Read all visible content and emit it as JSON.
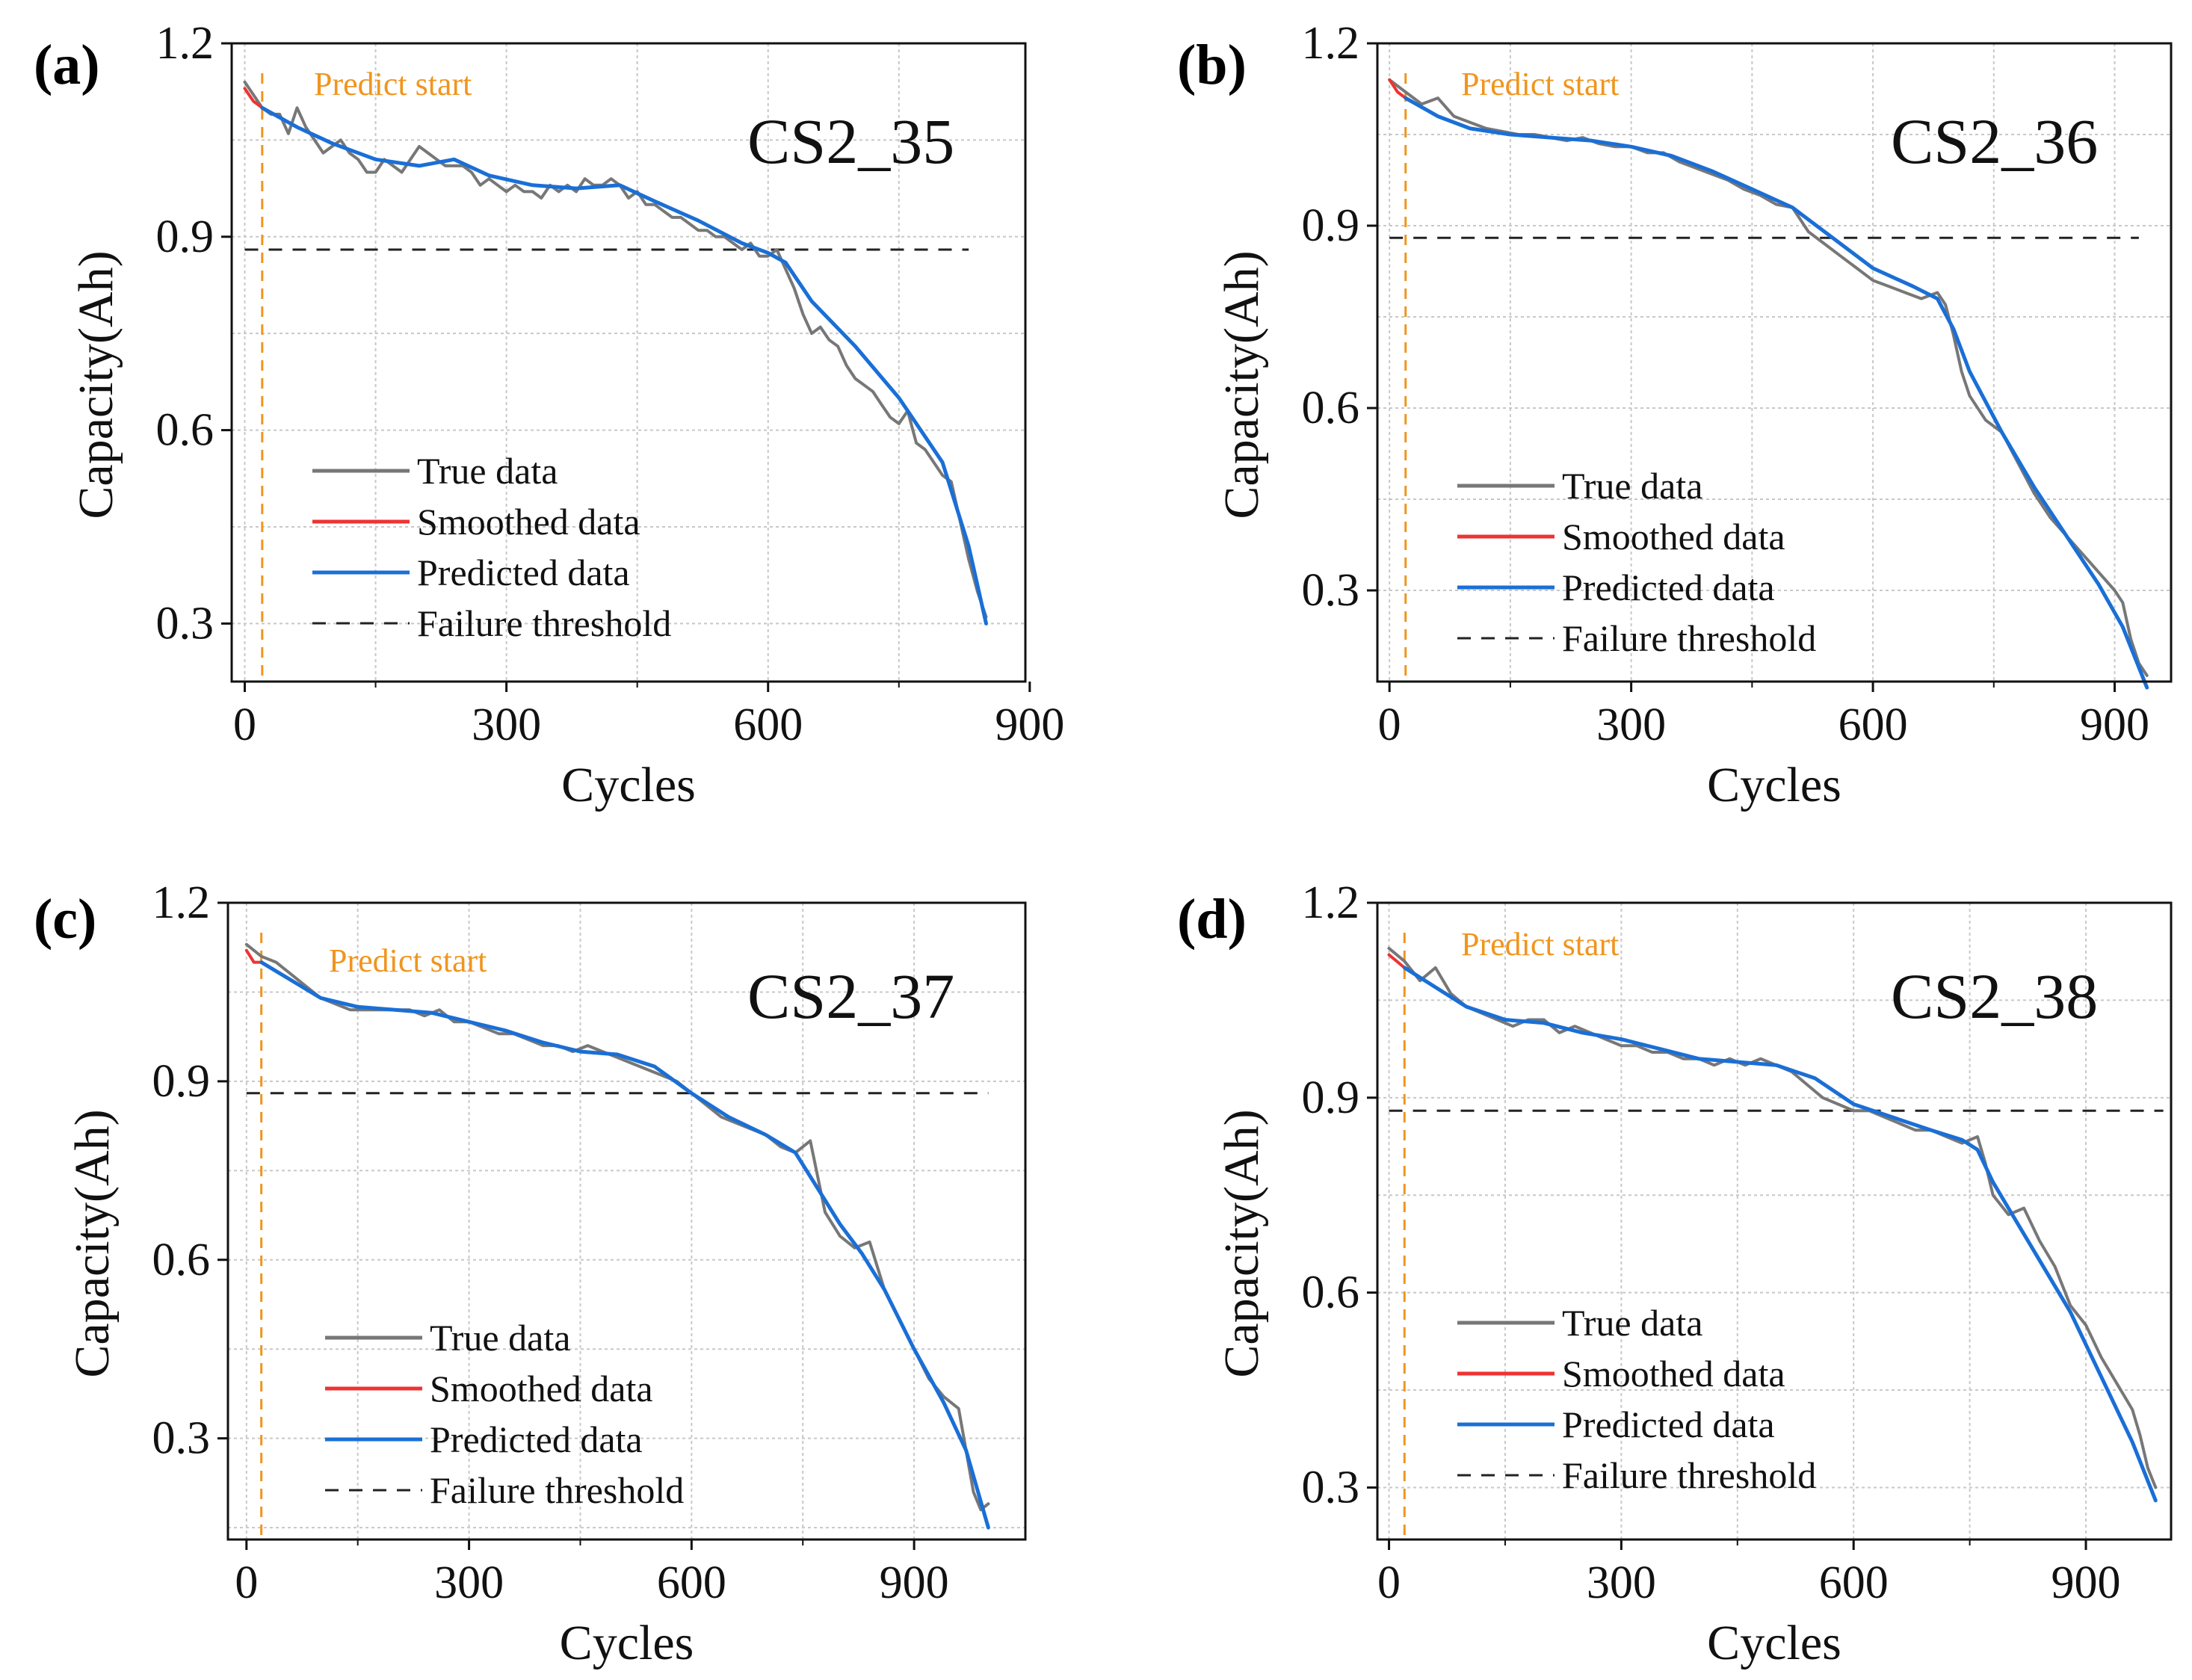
{
  "colors": {
    "true": "#777777",
    "smoothed": "#ee3333",
    "predicted": "#1a6fd6",
    "threshold": "#222222",
    "predict_start": "#f0951e",
    "grid": "#c8c8c8"
  },
  "chart_data": [
    {
      "type": "line",
      "panel": "(a)",
      "title": "CS2_35",
      "xlabel": "Cycles",
      "ylabel": "Capacity(Ah)",
      "xlim": [
        -15,
        895
      ],
      "ylim": [
        0.21,
        1.2
      ],
      "xticks": [
        0,
        300,
        600,
        900
      ],
      "xtick_labels": [
        "0",
        "300",
        "600",
        "900"
      ],
      "yticks": [
        0.3,
        0.6,
        0.9,
        1.2
      ],
      "ytick_labels": [
        "0.3",
        "0.6",
        "0.9",
        "1.2"
      ],
      "grid": true,
      "predict_start": {
        "x": 20,
        "label": "Predict start"
      },
      "failure_threshold": {
        "y": 0.88,
        "x_range": [
          0,
          830
        ]
      },
      "legend": [
        "True data",
        "Smoothed data",
        "Predicted data",
        "Failure threshold"
      ],
      "legend_placement": "lower-left",
      "series": [
        {
          "name": "True data",
          "role": "true",
          "x": [
            0,
            10,
            20,
            30,
            40,
            50,
            60,
            70,
            80,
            90,
            100,
            110,
            120,
            130,
            140,
            150,
            160,
            170,
            180,
            190,
            200,
            210,
            220,
            230,
            240,
            250,
            260,
            270,
            280,
            290,
            300,
            310,
            320,
            330,
            340,
            350,
            360,
            370,
            380,
            390,
            400,
            410,
            420,
            430,
            440,
            450,
            460,
            470,
            480,
            490,
            500,
            510,
            520,
            530,
            540,
            550,
            560,
            570,
            580,
            590,
            600,
            610,
            620,
            630,
            640,
            650,
            660,
            670,
            680,
            690,
            700,
            710,
            720,
            730,
            740,
            750,
            760,
            770,
            780,
            790,
            800,
            810,
            820,
            830,
            840,
            850
          ],
          "y": [
            1.14,
            1.12,
            1.1,
            1.09,
            1.09,
            1.06,
            1.1,
            1.07,
            1.05,
            1.03,
            1.04,
            1.05,
            1.03,
            1.02,
            1.0,
            1.0,
            1.02,
            1.01,
            1.0,
            1.02,
            1.04,
            1.03,
            1.02,
            1.01,
            1.01,
            1.01,
            1.0,
            0.98,
            0.99,
            0.98,
            0.97,
            0.98,
            0.97,
            0.97,
            0.96,
            0.98,
            0.97,
            0.98,
            0.97,
            0.99,
            0.98,
            0.98,
            0.99,
            0.98,
            0.96,
            0.97,
            0.95,
            0.95,
            0.94,
            0.93,
            0.93,
            0.92,
            0.91,
            0.91,
            0.9,
            0.9,
            0.89,
            0.88,
            0.89,
            0.87,
            0.87,
            0.88,
            0.85,
            0.82,
            0.78,
            0.75,
            0.76,
            0.74,
            0.73,
            0.7,
            0.68,
            0.67,
            0.66,
            0.64,
            0.62,
            0.61,
            0.63,
            0.58,
            0.57,
            0.55,
            0.53,
            0.52,
            0.46,
            0.4,
            0.35,
            0.31
          ]
        },
        {
          "name": "Smoothed data",
          "role": "smoothed",
          "x": [
            0,
            5,
            10,
            15,
            20
          ],
          "y": [
            1.13,
            1.12,
            1.11,
            1.105,
            1.1
          ]
        },
        {
          "name": "Predicted data",
          "role": "predicted",
          "x": [
            20,
            60,
            100,
            150,
            200,
            240,
            280,
            330,
            380,
            430,
            470,
            520,
            570,
            600,
            620,
            650,
            700,
            750,
            800,
            830,
            850
          ],
          "y": [
            1.1,
            1.07,
            1.045,
            1.02,
            1.01,
            1.02,
            0.995,
            0.98,
            0.975,
            0.98,
            0.955,
            0.925,
            0.89,
            0.875,
            0.86,
            0.8,
            0.73,
            0.65,
            0.55,
            0.42,
            0.3
          ]
        }
      ]
    },
    {
      "type": "line",
      "panel": "(b)",
      "title": "CS2_36",
      "xlabel": "Cycles",
      "ylabel": "Capacity(Ah)",
      "xlim": [
        -15,
        970
      ],
      "ylim": [
        0.15,
        1.2
      ],
      "xticks": [
        0,
        300,
        600,
        900
      ],
      "xtick_labels": [
        "0",
        "300",
        "600",
        "900"
      ],
      "yticks": [
        0.3,
        0.6,
        0.9,
        1.2
      ],
      "ytick_labels": [
        "0.3",
        "0.6",
        "0.9",
        "1.2"
      ],
      "grid": true,
      "predict_start": {
        "x": 20,
        "label": "Predict start"
      },
      "failure_threshold": {
        "y": 0.88,
        "x_range": [
          0,
          930
        ]
      },
      "legend": [
        "True data",
        "Smoothed data",
        "Predicted data",
        "Failure threshold"
      ],
      "legend_placement": "lower-left",
      "series": [
        {
          "name": "True data",
          "role": "true",
          "x": [
            0,
            20,
            40,
            60,
            80,
            100,
            120,
            140,
            160,
            180,
            200,
            220,
            240,
            260,
            280,
            300,
            320,
            340,
            360,
            380,
            400,
            420,
            440,
            460,
            480,
            500,
            520,
            540,
            560,
            580,
            600,
            620,
            640,
            660,
            680,
            690,
            700,
            710,
            720,
            740,
            760,
            780,
            800,
            820,
            840,
            860,
            880,
            900,
            910,
            920,
            930,
            940
          ],
          "y": [
            1.14,
            1.12,
            1.1,
            1.11,
            1.08,
            1.07,
            1.06,
            1.055,
            1.05,
            1.05,
            1.045,
            1.04,
            1.045,
            1.035,
            1.03,
            1.03,
            1.02,
            1.02,
            1.005,
            0.995,
            0.985,
            0.975,
            0.96,
            0.95,
            0.935,
            0.93,
            0.89,
            0.87,
            0.85,
            0.83,
            0.81,
            0.8,
            0.79,
            0.78,
            0.79,
            0.77,
            0.72,
            0.66,
            0.62,
            0.58,
            0.56,
            0.51,
            0.46,
            0.42,
            0.39,
            0.36,
            0.33,
            0.3,
            0.28,
            0.22,
            0.18,
            0.16
          ]
        },
        {
          "name": "Smoothed data",
          "role": "smoothed",
          "x": [
            0,
            5,
            10,
            15,
            20
          ],
          "y": [
            1.14,
            1.13,
            1.12,
            1.115,
            1.11
          ]
        },
        {
          "name": "Predicted data",
          "role": "predicted",
          "x": [
            20,
            60,
            100,
            150,
            200,
            250,
            300,
            350,
            400,
            450,
            500,
            550,
            600,
            650,
            680,
            700,
            720,
            760,
            800,
            840,
            880,
            910,
            940
          ],
          "y": [
            1.11,
            1.08,
            1.06,
            1.05,
            1.045,
            1.04,
            1.03,
            1.015,
            0.99,
            0.96,
            0.93,
            0.88,
            0.83,
            0.8,
            0.78,
            0.73,
            0.66,
            0.56,
            0.47,
            0.39,
            0.31,
            0.24,
            0.14
          ]
        }
      ]
    },
    {
      "type": "line",
      "panel": "(c)",
      "title": "CS2_37",
      "xlabel": "Cycles",
      "ylabel": "Capacity(Ah)",
      "xlim": [
        -25,
        1050
      ],
      "ylim": [
        0.13,
        1.2
      ],
      "xticks": [
        0,
        300,
        600,
        900
      ],
      "xtick_labels": [
        "0",
        "300",
        "600",
        "900"
      ],
      "yticks": [
        0.3,
        0.6,
        0.9,
        1.2
      ],
      "ytick_labels": [
        "0.3",
        "0.6",
        "0.9",
        "1.2"
      ],
      "grid": true,
      "predict_start": {
        "x": 20,
        "label": "Predict start"
      },
      "failure_threshold": {
        "y": 0.88,
        "x_range": [
          0,
          1000
        ]
      },
      "legend": [
        "True data",
        "Smoothed data",
        "Predicted data",
        "Failure threshold"
      ],
      "legend_placement": "lower-left",
      "series": [
        {
          "name": "True data",
          "role": "true",
          "x": [
            0,
            20,
            40,
            60,
            80,
            100,
            120,
            140,
            160,
            180,
            200,
            220,
            240,
            260,
            280,
            300,
            320,
            340,
            360,
            380,
            400,
            420,
            440,
            460,
            480,
            500,
            520,
            540,
            560,
            580,
            600,
            620,
            640,
            660,
            680,
            700,
            720,
            740,
            760,
            770,
            780,
            800,
            820,
            840,
            860,
            880,
            900,
            920,
            940,
            960,
            970,
            980,
            990,
            1000
          ],
          "y": [
            1.13,
            1.11,
            1.1,
            1.08,
            1.06,
            1.04,
            1.03,
            1.02,
            1.02,
            1.02,
            1.02,
            1.02,
            1.01,
            1.02,
            1.0,
            1.0,
            0.99,
            0.98,
            0.98,
            0.97,
            0.96,
            0.96,
            0.95,
            0.96,
            0.95,
            0.94,
            0.93,
            0.92,
            0.91,
            0.9,
            0.88,
            0.86,
            0.84,
            0.83,
            0.82,
            0.81,
            0.79,
            0.78,
            0.8,
            0.74,
            0.68,
            0.64,
            0.62,
            0.63,
            0.55,
            0.5,
            0.45,
            0.4,
            0.37,
            0.35,
            0.28,
            0.21,
            0.18,
            0.19
          ]
        },
        {
          "name": "Smoothed data",
          "role": "smoothed",
          "x": [
            0,
            5,
            10,
            15,
            20
          ],
          "y": [
            1.12,
            1.11,
            1.1,
            1.1,
            1.1
          ]
        },
        {
          "name": "Predicted data",
          "role": "predicted",
          "x": [
            20,
            60,
            100,
            150,
            200,
            250,
            300,
            350,
            400,
            450,
            500,
            550,
            600,
            650,
            700,
            740,
            760,
            780,
            800,
            830,
            860,
            900,
            940,
            970,
            1000
          ],
          "y": [
            1.1,
            1.07,
            1.04,
            1.025,
            1.02,
            1.015,
            1.0,
            0.985,
            0.965,
            0.95,
            0.945,
            0.925,
            0.88,
            0.84,
            0.81,
            0.78,
            0.74,
            0.7,
            0.66,
            0.61,
            0.55,
            0.45,
            0.36,
            0.28,
            0.15
          ]
        }
      ]
    },
    {
      "type": "line",
      "panel": "(d)",
      "title": "CS2_38",
      "xlabel": "Cycles",
      "ylabel": "Capacity(Ah)",
      "xlim": [
        -15,
        1010
      ],
      "ylim": [
        0.22,
        1.2
      ],
      "xticks": [
        0,
        300,
        600,
        900
      ],
      "xtick_labels": [
        "0",
        "300",
        "600",
        "900"
      ],
      "yticks": [
        0.3,
        0.6,
        0.9,
        1.2
      ],
      "ytick_labels": [
        "0.3",
        "0.6",
        "0.9",
        "1.2"
      ],
      "grid": true,
      "predict_start": {
        "x": 20,
        "label": "Predict start"
      },
      "failure_threshold": {
        "y": 0.88,
        "x_range": [
          0,
          1000
        ]
      },
      "legend": [
        "True data",
        "Smoothed data",
        "Predicted data",
        "Failure threshold"
      ],
      "legend_placement": "lower-left",
      "series": [
        {
          "name": "True data",
          "role": "true",
          "x": [
            0,
            20,
            40,
            60,
            80,
            100,
            120,
            140,
            160,
            180,
            200,
            220,
            240,
            260,
            280,
            300,
            320,
            340,
            360,
            380,
            400,
            420,
            440,
            460,
            480,
            500,
            520,
            540,
            560,
            580,
            600,
            620,
            640,
            660,
            680,
            700,
            720,
            740,
            760,
            770,
            780,
            800,
            820,
            840,
            860,
            880,
            900,
            920,
            940,
            960,
            970,
            980,
            990
          ],
          "y": [
            1.13,
            1.11,
            1.08,
            1.1,
            1.06,
            1.04,
            1.03,
            1.02,
            1.01,
            1.02,
            1.02,
            1.0,
            1.01,
            1.0,
            0.99,
            0.98,
            0.98,
            0.97,
            0.97,
            0.96,
            0.96,
            0.95,
            0.96,
            0.95,
            0.96,
            0.95,
            0.94,
            0.92,
            0.9,
            0.89,
            0.88,
            0.88,
            0.87,
            0.86,
            0.85,
            0.85,
            0.84,
            0.83,
            0.84,
            0.8,
            0.75,
            0.72,
            0.73,
            0.68,
            0.64,
            0.58,
            0.55,
            0.5,
            0.46,
            0.42,
            0.38,
            0.33,
            0.3
          ]
        },
        {
          "name": "Smoothed data",
          "role": "smoothed",
          "x": [
            0,
            5,
            10,
            15,
            20
          ],
          "y": [
            1.12,
            1.115,
            1.11,
            1.105,
            1.1
          ]
        },
        {
          "name": "Predicted data",
          "role": "predicted",
          "x": [
            20,
            60,
            100,
            150,
            200,
            250,
            300,
            350,
            400,
            450,
            500,
            550,
            600,
            650,
            700,
            740,
            760,
            780,
            800,
            840,
            880,
            920,
            960,
            990
          ],
          "y": [
            1.1,
            1.07,
            1.04,
            1.02,
            1.015,
            1.0,
            0.99,
            0.975,
            0.96,
            0.955,
            0.95,
            0.93,
            0.89,
            0.87,
            0.85,
            0.835,
            0.82,
            0.77,
            0.73,
            0.65,
            0.57,
            0.47,
            0.37,
            0.28
          ]
        }
      ]
    }
  ]
}
